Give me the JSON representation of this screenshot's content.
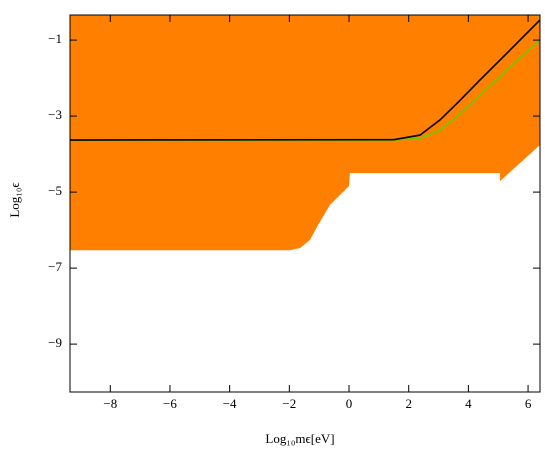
{
  "chart_data": {
    "type": "line",
    "xlabel": "Log₁₀mϵ[eV]",
    "ylabel": "Log₁₀ϵ",
    "xlim": [
      -9.35,
      6.4
    ],
    "ylim": [
      -10.26,
      -0.34
    ],
    "xticks": [
      {
        "value": -8,
        "label": "−8"
      },
      {
        "value": -6,
        "label": "−6"
      },
      {
        "value": -4,
        "label": "−4"
      },
      {
        "value": -2,
        "label": "−2"
      },
      0,
      2,
      4,
      6
    ],
    "yticks": [
      {
        "value": -1,
        "label": "−1"
      },
      {
        "value": -3,
        "label": "−3"
      },
      {
        "value": -5,
        "label": "−5"
      },
      {
        "value": -7,
        "label": "−7"
      },
      {
        "value": -9,
        "label": "−9"
      }
    ],
    "regions": [
      {
        "color": "#ff8000",
        "x": [
          -9.35,
          6.4,
          6.4,
          5.06,
          5.06,
          0.03,
          0,
          -0.64,
          -1.04,
          -1.31,
          -1.64,
          -1.98,
          -9.35
        ],
        "y": [
          -0.34,
          -0.34,
          -3.76,
          -4.71,
          -4.5,
          -4.5,
          -4.84,
          -5.34,
          -5.87,
          -6.26,
          -6.47,
          -6.53,
          -6.53
        ]
      }
    ],
    "series": [
      {
        "color": "#66cc00",
        "x": [
          -9.35,
          1.5,
          2.4,
          3.05,
          3.7,
          4.39,
          5.4,
          6.4
        ],
        "values": [
          -3.63,
          -3.63,
          -3.58,
          -3.37,
          -2.95,
          -2.45,
          -1.7,
          -1.0
        ]
      },
      {
        "color": "#000000",
        "x": [
          -9.35,
          1.5,
          2.38,
          3.05,
          3.7,
          4.39,
          5.4,
          6.4
        ],
        "values": [
          -3.63,
          -3.62,
          -3.5,
          -3.1,
          -2.6,
          -2.05,
          -1.26,
          -0.47
        ]
      }
    ]
  }
}
